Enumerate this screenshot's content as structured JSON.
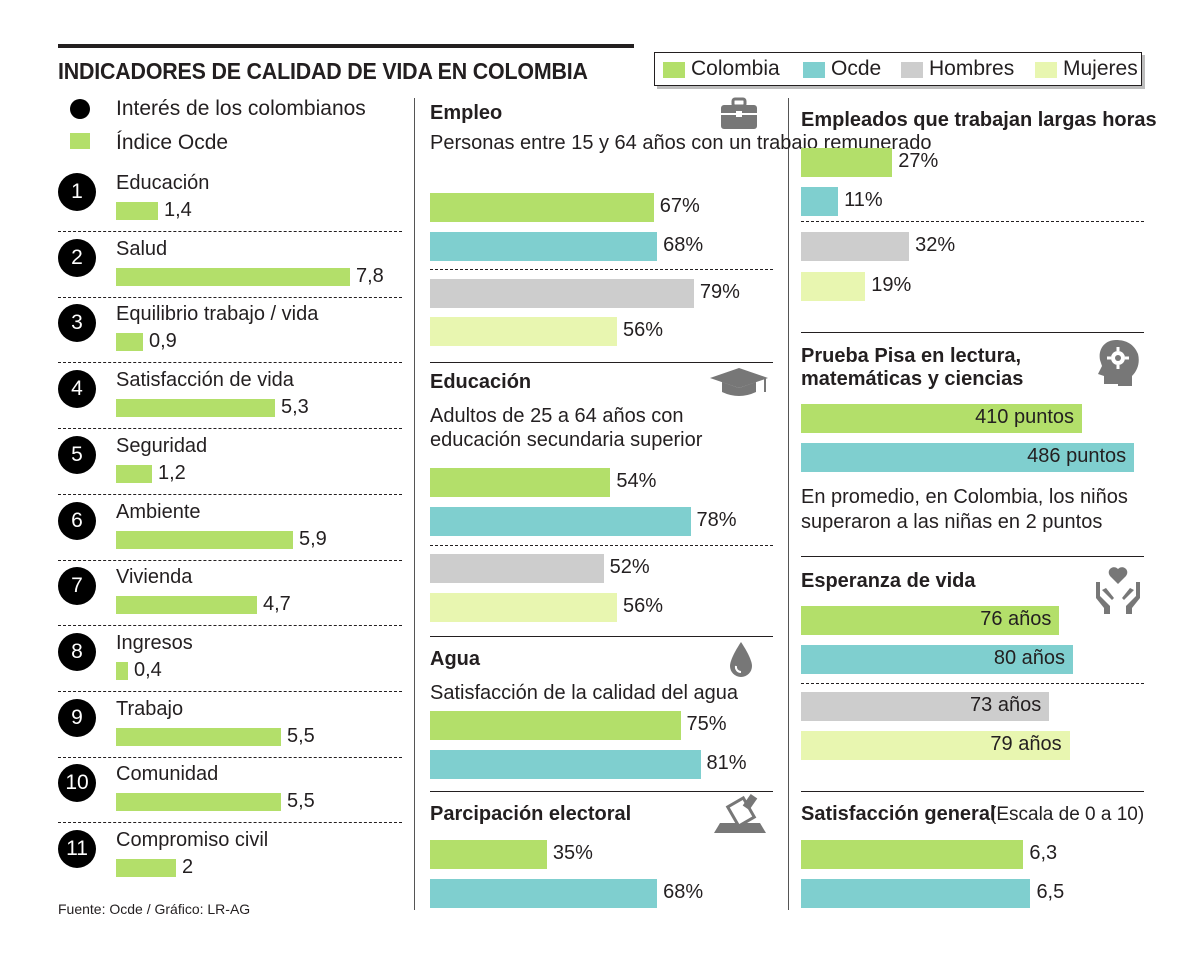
{
  "title": "INDICADORES DE CALIDAD DE VIDA EN COLOMBIA",
  "colors": {
    "colombia": "#b3df6a",
    "ocde": "#7fcfcf",
    "hombres": "#cdcdcd",
    "mujeres": "#e8f6b0",
    "ink": "#231f20"
  },
  "legend": {
    "colombia": "Colombia",
    "ocde": "Ocde",
    "hombres": "Hombres",
    "mujeres": "Mujeres"
  },
  "left_legend": {
    "interest": "Interés de los colombianos",
    "index": "Índice Ocde"
  },
  "source": "Fuente: Ocde / Gráfico: LR-AG",
  "chart_data": [
    {
      "type": "bar",
      "title": "Índice Ocde",
      "categories": [
        "Educación",
        "Salud",
        "Equilibrio trabajo / vida",
        "Satisfacción de vida",
        "Seguridad",
        "Ambiente",
        "Vivienda",
        "Ingresos",
        "Trabajo",
        "Comunidad",
        "Compromiso civil"
      ],
      "ranks": [
        "1",
        "2",
        "3",
        "4",
        "5",
        "6",
        "7",
        "8",
        "9",
        "10",
        "11"
      ],
      "values": [
        1.4,
        7.8,
        0.9,
        5.3,
        1.2,
        5.9,
        4.7,
        0.4,
        5.5,
        5.5,
        2
      ],
      "labels": [
        "1,4",
        "7,8",
        "0,9",
        "5,3",
        "1,2",
        "5,9",
        "4,7",
        "0,4",
        "5,5",
        "5,5",
        "2"
      ]
    },
    {
      "type": "bar",
      "title": "Empleo",
      "subtitle": "Personas entre 15 y 64 años con un trabajo remunerado",
      "categories": [
        "Colombia",
        "Ocde",
        "Hombres",
        "Mujeres"
      ],
      "values": [
        67,
        68,
        79,
        56
      ],
      "labels": [
        "67%",
        "68%",
        "79%",
        "56%"
      ]
    },
    {
      "type": "bar",
      "title": "Educación",
      "subtitle": "Adultos de 25 a 64 años con educación secundaria superior",
      "categories": [
        "Colombia",
        "Ocde",
        "Hombres",
        "Mujeres"
      ],
      "values": [
        54,
        78,
        52,
        56
      ],
      "labels": [
        "54%",
        "78%",
        "52%",
        "56%"
      ]
    },
    {
      "type": "bar",
      "title": "Agua",
      "subtitle": "Satisfacción de la calidad del agua",
      "categories": [
        "Colombia",
        "Ocde"
      ],
      "values": [
        75,
        81
      ],
      "labels": [
        "75%",
        "81%"
      ]
    },
    {
      "type": "bar",
      "title": "Parcipación electoral",
      "categories": [
        "Colombia",
        "Ocde"
      ],
      "values": [
        35,
        68
      ],
      "labels": [
        "35%",
        "68%"
      ]
    },
    {
      "type": "bar",
      "title": "Empleados que trabajan largas horas",
      "categories": [
        "Colombia",
        "Ocde",
        "Hombres",
        "Mujeres"
      ],
      "values": [
        27,
        11,
        32,
        19
      ],
      "labels": [
        "27%",
        "11%",
        "32%",
        "19%"
      ]
    },
    {
      "type": "bar",
      "title": "Prueba Pisa en lectura, matemáticas y ciencias",
      "title_line1": "Prueba Pisa en lectura,",
      "title_line2": "matemáticas y ciencias",
      "categories": [
        "Colombia",
        "Ocde"
      ],
      "values": [
        410,
        486
      ],
      "labels": [
        "410 puntos",
        "486 puntos"
      ],
      "note_line1": "En promedio, en Colombia, los niños",
      "note_line2": "superaron a las niñas en 2 puntos"
    },
    {
      "type": "bar",
      "title": "Esperanza de vida",
      "categories": [
        "Colombia",
        "Ocde",
        "Hombres",
        "Mujeres"
      ],
      "values": [
        76,
        80,
        73,
        79
      ],
      "labels": [
        "76 años",
        "80 años",
        "73 años",
        "79 años"
      ]
    },
    {
      "type": "bar",
      "title": "Satisfacción general",
      "subtitle": "(Escala de 0 a 10)",
      "categories": [
        "Colombia",
        "Ocde"
      ],
      "values": [
        6.3,
        6.5
      ],
      "labels": [
        "6,3",
        "6,5"
      ]
    }
  ]
}
